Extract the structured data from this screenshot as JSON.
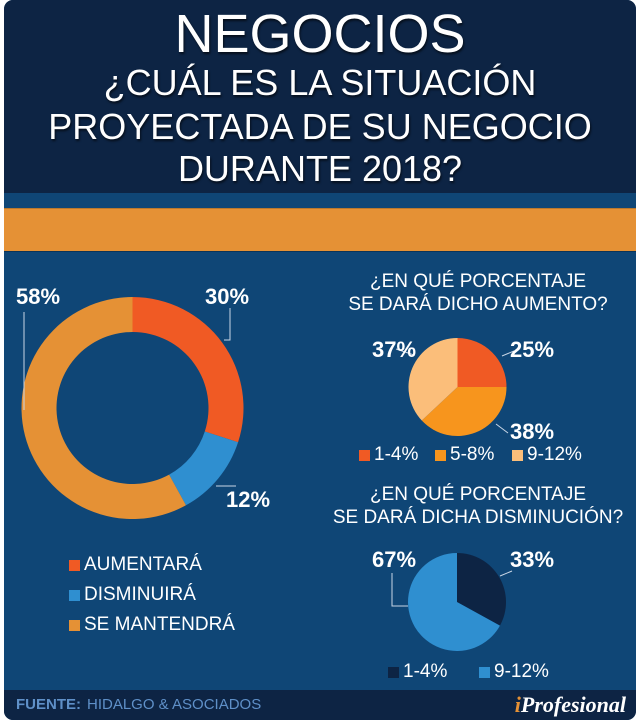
{
  "header": {
    "title": "NEGOCIOS",
    "subtitle_lines": [
      "¿CUÁL ES LA SITUACIÓN",
      "PROYECTADA DE SU NEGOCIO",
      "DURANTE 2018?"
    ]
  },
  "colors": {
    "navy": "#0d2444",
    "panel_blue": "#0f4676",
    "orange_band": "#e59135",
    "aumentara": "#f05a24",
    "disminuira": "#2f8fd0",
    "mantendra": "#e59135",
    "p1_1_4": "#f05a24",
    "p1_5_8": "#f7951d",
    "p1_9_12": "#fbbe7a",
    "p2_1_4": "#0d2444",
    "p2_9_12": "#2f8fd0"
  },
  "chart_data": [
    {
      "type": "pie",
      "variant": "donut",
      "title": "¿CUÁL ES LA SITUACIÓN PROYECTADA DE SU NEGOCIO DURANTE 2018?",
      "categories": [
        "AUMENTARÁ",
        "DISMINUIRÁ",
        "SE MANTENDRÁ"
      ],
      "values": [
        30,
        12,
        58
      ],
      "data_labels": [
        "30%",
        "12%",
        "58%"
      ],
      "colors": [
        "#f05a24",
        "#2f8fd0",
        "#e59135"
      ],
      "legend_position": "bottom"
    },
    {
      "type": "pie",
      "title": "¿EN QUÉ PORCENTAJE SE DARÁ DICHO AUMENTO?",
      "title_lines": [
        "¿EN QUÉ PORCENTAJE",
        "SE DARÁ DICHO AUMENTO?"
      ],
      "categories": [
        "1-4%",
        "5-8%",
        "9-12%"
      ],
      "values": [
        25,
        38,
        37
      ],
      "data_labels": [
        "25%",
        "38%",
        "37%"
      ],
      "colors": [
        "#f05a24",
        "#f7951d",
        "#fbbe7a"
      ],
      "legend_position": "bottom"
    },
    {
      "type": "pie",
      "title": "¿EN QUÉ PORCENTAJE SE DARÁ DICHA DISMINUCIÓN?",
      "title_lines": [
        "¿EN QUÉ PORCENTAJE",
        "SE DARÁ DICHA DISMINUCIÓN?"
      ],
      "categories": [
        "1-4%",
        "9-12%"
      ],
      "values": [
        33,
        67
      ],
      "data_labels": [
        "33%",
        "67%"
      ],
      "colors": [
        "#0d2444",
        "#2f8fd0"
      ],
      "legend_position": "bottom"
    }
  ],
  "footer": {
    "source_label": "FUENTE:",
    "source_value": "HIDALGO & ASOCIADOS",
    "brand_i": "i",
    "brand_rest": "Profesional"
  }
}
